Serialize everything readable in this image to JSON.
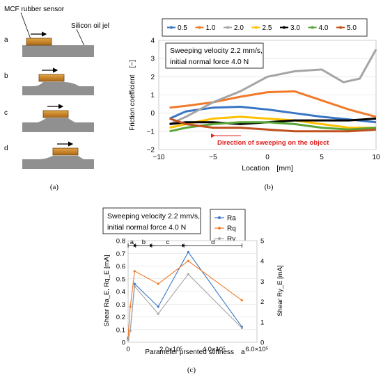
{
  "panel_a": {
    "caption": "(a)",
    "sensor_label": "MCF rubber sensor",
    "object_label": "Silicon oil jel",
    "steps": [
      "a",
      "b",
      "c",
      "d"
    ]
  },
  "panel_b": {
    "caption": "(b)",
    "legend_items": [
      "0.5",
      "1.0",
      "2.0",
      "2.5",
      "3.0",
      "4.0",
      "5.0"
    ],
    "legend_colors": [
      "#3a76c4",
      "#f07a2a",
      "#a5a5a5",
      "#ffc000",
      "#000000",
      "#5aa537",
      "#c0511e"
    ],
    "info_line1": "Sweeping velocity 2.2 mm/s,",
    "info_line2": "initial normal force 4.0 N",
    "ylabel": "Friction coefficient　[−]",
    "xlabel": "Location　[mm]",
    "arrow_label": "Direction of sweeping on the object",
    "arrow_color": "#e02020",
    "x_ticks": [
      "−10",
      "−5",
      "0",
      "5",
      "10"
    ],
    "y_ticks": [
      "−2",
      "−1",
      "0",
      "1",
      "2",
      "3",
      "4"
    ]
  },
  "panel_c": {
    "caption": "(c)",
    "info_line1": "Sweeping velocity 2.2 mm/s,",
    "info_line2": "initial normal force 4.0 N",
    "legend_items": [
      "Ra",
      "Rq",
      "Ry"
    ],
    "legend_colors": [
      "#3a76c4",
      "#f07a2a",
      "#a5a5a5"
    ],
    "ylabel_left": "Shear Ra_E, Rq_E [mA]",
    "ylabel_right": "Shear Ry_E [mA]",
    "xlabel": "Parameter prsented stiffness　a",
    "x_ticks": [
      "0",
      "2.0×10⁵",
      "4.0×10⁵",
      "6.0×10⁵"
    ],
    "y_left_ticks": [
      "0",
      "0.1",
      "0.2",
      "0.3",
      "0.4",
      "0.5",
      "0.6",
      "0.7",
      "0.8"
    ],
    "y_right_ticks": [
      "0",
      "1",
      "2",
      "3",
      "4",
      "5"
    ],
    "region_labels": [
      "a",
      "b",
      "c",
      "d"
    ]
  },
  "chart_data": [
    {
      "type": "line",
      "xlabel": "Location [mm]",
      "ylabel": "Friction coefficient [−]",
      "xlim": [
        -10,
        10
      ],
      "ylim": [
        -2,
        4
      ],
      "legend_placement": "top",
      "series": [
        {
          "name": "0.5",
          "x": [
            -9,
            -7.5,
            -5,
            -2.5,
            0,
            2.5,
            5,
            7.5,
            10
          ],
          "y": [
            -0.3,
            0.1,
            0.3,
            0.35,
            0.2,
            0.0,
            -0.2,
            -0.35,
            -0.5
          ]
        },
        {
          "name": "1.0",
          "x": [
            -9,
            -7.5,
            -5,
            -2.5,
            0,
            2.5,
            5,
            7.5,
            10
          ],
          "y": [
            0.3,
            0.4,
            0.6,
            0.9,
            1.15,
            1.2,
            0.7,
            0.2,
            -0.2
          ]
        },
        {
          "name": "2.0",
          "x": [
            -9,
            -7.5,
            -5,
            -2.5,
            0,
            2.5,
            5,
            7,
            8.5,
            10
          ],
          "y": [
            -0.6,
            -0.2,
            0.6,
            1.2,
            2.0,
            2.3,
            2.4,
            1.7,
            1.9,
            3.5
          ]
        },
        {
          "name": "2.5",
          "x": [
            -9,
            -7.5,
            -5,
            -2.5,
            0,
            2.5,
            5,
            7.5,
            10
          ],
          "y": [
            -0.8,
            -0.6,
            -0.3,
            -0.2,
            -0.3,
            -0.4,
            -0.6,
            -0.8,
            -0.8
          ]
        },
        {
          "name": "3.0",
          "x": [
            -9,
            -7.5,
            -5,
            -2.5,
            0,
            2.5,
            5,
            7.5,
            10
          ],
          "y": [
            -0.6,
            -0.5,
            -0.5,
            -0.6,
            -0.5,
            -0.4,
            -0.4,
            -0.4,
            -0.3
          ]
        },
        {
          "name": "4.0",
          "x": [
            -9,
            -7.5,
            -5,
            -2.5,
            0,
            2.5,
            5,
            7.5,
            10
          ],
          "y": [
            -1.0,
            -0.8,
            -0.6,
            -0.5,
            -0.5,
            -0.6,
            -0.8,
            -0.9,
            -0.8
          ]
        },
        {
          "name": "5.0",
          "x": [
            -9,
            -7.5,
            -5,
            -2.5,
            0,
            2.5,
            5,
            7.5,
            10
          ],
          "y": [
            -0.3,
            -0.6,
            -0.8,
            -0.8,
            -0.9,
            -1.0,
            -1.0,
            -1.0,
            -0.9
          ]
        }
      ]
    },
    {
      "type": "line",
      "xlabel": "Parameter prsented stiffness a",
      "ylabel": "Shear Ra_E, Rq_E [mA]",
      "ylabel_right": "Shear Ry_E [mA]",
      "xlim": [
        0,
        600000
      ],
      "ylim": [
        0,
        0.8
      ],
      "ylim_right": [
        0,
        5
      ],
      "legend_placement": "top-right",
      "series": [
        {
          "name": "Ra",
          "axis": "left",
          "x": [
            0,
            10000,
            30000,
            140000,
            280000,
            530000
          ],
          "y": [
            0.03,
            0.09,
            0.46,
            0.28,
            0.71,
            0.12
          ]
        },
        {
          "name": "Rq",
          "axis": "left",
          "x": [
            0,
            10000,
            30000,
            140000,
            280000,
            530000
          ],
          "y": [
            0.04,
            0.28,
            0.56,
            0.46,
            0.64,
            0.33
          ]
        },
        {
          "name": "Ry",
          "axis": "right",
          "x": [
            0,
            10000,
            30000,
            140000,
            280000,
            530000
          ],
          "y": [
            0.1,
            0.55,
            2.75,
            1.4,
            3.35,
            0.7
          ]
        }
      ]
    }
  ]
}
